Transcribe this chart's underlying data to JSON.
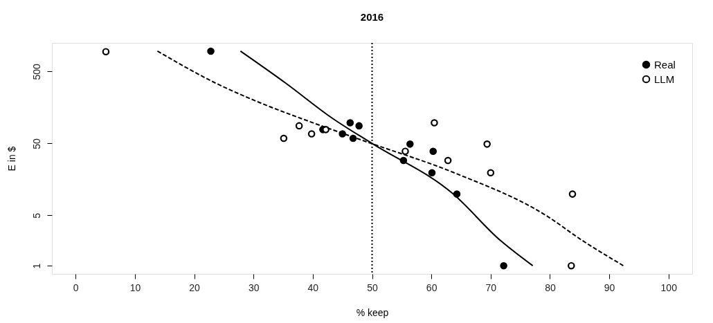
{
  "chart_data": {
    "type": "scatter",
    "title": "2016",
    "xlabel": "% keep",
    "ylabel": "E in $",
    "xlim": [
      -4,
      104
    ],
    "xticks": [
      0,
      10,
      20,
      30,
      40,
      50,
      60,
      70,
      80,
      90,
      100
    ],
    "ylim": [
      0.77,
      1250
    ],
    "yticks": [
      1,
      5,
      50,
      500
    ],
    "log": "y",
    "grid": false,
    "legend": "top right",
    "series": [
      {
        "name": "Real",
        "marker": "circle",
        "color": "#000000",
        "x": [
          22.8,
          41.7,
          45.0,
          46.3,
          47.8,
          46.8,
          56.4,
          55.3,
          60.3,
          60.1,
          64.3,
          72.2
        ],
        "values": [
          960,
          78,
          68,
          97,
          88,
          59,
          49,
          29,
          39,
          19.6,
          9.9,
          1.0
        ]
      },
      {
        "name": "LLM",
        "marker": "circle",
        "color": "#000000",
        "x": [
          5.1,
          35.1,
          37.7,
          39.8,
          42.2,
          60.5,
          55.6,
          62.8,
          69.4,
          70.0,
          83.8,
          83.6
        ],
        "values": [
          944,
          59,
          88,
          68,
          78,
          97,
          39,
          29,
          49,
          19.6,
          9.9,
          1.0
        ]
      },
      {
        "type": "line",
        "color": "#000000",
        "line_style": "solid",
        "x": [
          27.8,
          35.4,
          43.3,
          50,
          63.7,
          71.6,
          77.1
        ],
        "values": [
          960,
          346,
          112,
          50,
          9.9,
          2.26,
          1.0
        ]
      },
      {
        "type": "line",
        "color": "#000000",
        "line_style": "dashed",
        "x": [
          13.8,
          23.6,
          31.4,
          39.3,
          49.6,
          63.7,
          79.5,
          85.4,
          92.4
        ],
        "values": [
          960,
          346,
          180,
          102,
          51,
          19.8,
          4.9,
          2.26,
          1.0
        ]
      }
    ],
    "ref_lines": [
      {
        "axis": "x",
        "value": 50,
        "line_style": "dotted",
        "color": "#000000"
      }
    ]
  }
}
